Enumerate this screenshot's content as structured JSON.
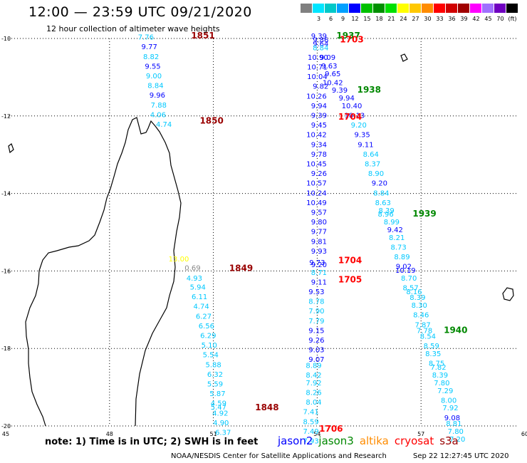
{
  "header": {
    "title": "12:00 — 23:59 UTC 09/21/2020",
    "subtitle": "12 hour collection of altimeter wave heights"
  },
  "scale": {
    "unit_label": "(ft)",
    "entries": [
      {
        "color": "#808080",
        "label": ""
      },
      {
        "color": "#00e5ff",
        "label": "3"
      },
      {
        "color": "#00c8c8",
        "label": "6"
      },
      {
        "color": "#00a0ff",
        "label": "9"
      },
      {
        "color": "#0000ff",
        "label": "12"
      },
      {
        "color": "#00c000",
        "label": "15"
      },
      {
        "color": "#009000",
        "label": "18"
      },
      {
        "color": "#00e000",
        "label": "21"
      },
      {
        "color": "#ffff00",
        "label": "24"
      },
      {
        "color": "#ffc800",
        "label": "27"
      },
      {
        "color": "#ff8c00",
        "label": "30"
      },
      {
        "color": "#ff0000",
        "label": "33"
      },
      {
        "color": "#d00000",
        "label": "36"
      },
      {
        "color": "#a00000",
        "label": "39"
      },
      {
        "color": "#ff00ff",
        "label": "42"
      },
      {
        "color": "#a070ff",
        "label": "45"
      },
      {
        "color": "#7000c0",
        "label": "70"
      },
      {
        "color": "#000000",
        "label": ""
      }
    ]
  },
  "map": {
    "lon_ticks": [
      "45",
      "48",
      "51",
      "54",
      "57",
      "60"
    ],
    "lat_ticks": [
      "-10",
      "-12",
      "-14",
      "-16",
      "-18",
      "-20"
    ],
    "colors": {
      "jason2": "#0000ff",
      "jason3": "#008800",
      "altika": "#ff8c00",
      "cryosat": "#ff0000",
      "s3a": "#990000",
      "cyan": "#00c8ff",
      "yellow": "#ffff00",
      "gray": "#888888",
      "coast": "#000000"
    },
    "labels": [
      {
        "t": "7.76",
        "c": "cyan",
        "lon": 49.05,
        "lat": -10.03
      },
      {
        "t": "9.77",
        "c": "jason2",
        "lon": 49.15,
        "lat": -10.28
      },
      {
        "t": "8.82",
        "c": "cyan",
        "lon": 49.2,
        "lat": -10.53
      },
      {
        "t": "9.55",
        "c": "jason2",
        "lon": 49.25,
        "lat": -10.78
      },
      {
        "t": "9.00",
        "c": "cyan",
        "lon": 49.28,
        "lat": -11.03
      },
      {
        "t": "8.84",
        "c": "cyan",
        "lon": 49.33,
        "lat": -11.28
      },
      {
        "t": "9.96",
        "c": "jason2",
        "lon": 49.38,
        "lat": -11.53
      },
      {
        "t": "7.88",
        "c": "cyan",
        "lon": 49.42,
        "lat": -11.78
      },
      {
        "t": "4.06",
        "c": "cyan",
        "lon": 49.4,
        "lat": -12.03
      },
      {
        "t": "4.74",
        "c": "cyan",
        "lon": 49.57,
        "lat": -12.28
      },
      {
        "t": "13.00",
        "c": "yellow",
        "lon": 50.0,
        "lat": -15.75
      },
      {
        "t": "0.69",
        "c": "gray",
        "lon": 50.4,
        "lat": -15.98
      },
      {
        "t": "4.93",
        "c": "cyan",
        "lon": 50.45,
        "lat": -16.25
      },
      {
        "t": "5.94",
        "c": "cyan",
        "lon": 50.55,
        "lat": -16.48
      },
      {
        "t": "6.11",
        "c": "cyan",
        "lon": 50.6,
        "lat": -16.73
      },
      {
        "t": "4.74",
        "c": "cyan",
        "lon": 50.65,
        "lat": -16.98
      },
      {
        "t": "6.27",
        "c": "cyan",
        "lon": 50.72,
        "lat": -17.23
      },
      {
        "t": "6.56",
        "c": "cyan",
        "lon": 50.8,
        "lat": -17.48
      },
      {
        "t": "6.29",
        "c": "cyan",
        "lon": 50.85,
        "lat": -17.73
      },
      {
        "t": "5.10",
        "c": "cyan",
        "lon": 50.88,
        "lat": -17.98
      },
      {
        "t": "5.54",
        "c": "cyan",
        "lon": 50.92,
        "lat": -18.23
      },
      {
        "t": "5.88",
        "c": "cyan",
        "lon": 51.0,
        "lat": -18.48
      },
      {
        "t": "6.32",
        "c": "cyan",
        "lon": 51.05,
        "lat": -18.73
      },
      {
        "t": "5.59",
        "c": "cyan",
        "lon": 51.05,
        "lat": -18.98
      },
      {
        "t": "5.87",
        "c": "cyan",
        "lon": 51.12,
        "lat": -19.23
      },
      {
        "t": "4.59",
        "c": "cyan",
        "lon": 51.15,
        "lat": -19.48
      },
      {
        "t": "5.47",
        "c": "cyan",
        "lon": 51.15,
        "lat": -19.58
      },
      {
        "t": "4.92",
        "c": "cyan",
        "lon": 51.2,
        "lat": -19.73
      },
      {
        "t": "4.90",
        "c": "cyan",
        "lon": 51.22,
        "lat": -19.98
      },
      {
        "t": "6.37",
        "c": "cyan",
        "lon": 51.28,
        "lat": -20.23
      },
      {
        "t": "9.39",
        "c": "jason2",
        "lon": 54.05,
        "lat": -10.0
      },
      {
        "t": "9.86",
        "c": "jason2",
        "lon": 54.1,
        "lat": -10.1
      },
      {
        "t": "9.64",
        "c": "jason2",
        "lon": 54.1,
        "lat": -10.2
      },
      {
        "t": "8.84",
        "c": "cyan",
        "lon": 54.1,
        "lat": -10.3
      },
      {
        "t": "10.90",
        "c": "jason2",
        "lon": 54.02,
        "lat": -10.55
      },
      {
        "t": "9.09",
        "c": "jason2",
        "lon": 54.3,
        "lat": -10.55
      },
      {
        "t": "10.71",
        "c": "jason2",
        "lon": 54.0,
        "lat": -10.8
      },
      {
        "t": "9.63",
        "c": "jason2",
        "lon": 54.35,
        "lat": -10.77
      },
      {
        "t": "10.04",
        "c": "jason2",
        "lon": 54.0,
        "lat": -11.05
      },
      {
        "t": "9.65",
        "c": "jason2",
        "lon": 54.45,
        "lat": -10.97
      },
      {
        "t": "9.82",
        "c": "jason2",
        "lon": 54.1,
        "lat": -11.3
      },
      {
        "t": "10.42",
        "c": "jason2",
        "lon": 54.45,
        "lat": -11.2
      },
      {
        "t": "9.39",
        "c": "jason2",
        "lon": 54.65,
        "lat": -11.4
      },
      {
        "t": "10.26",
        "c": "jason2",
        "lon": 53.98,
        "lat": -11.55
      },
      {
        "t": "9.94",
        "c": "jason2",
        "lon": 54.85,
        "lat": -11.6
      },
      {
        "t": "9.94",
        "c": "jason2",
        "lon": 54.05,
        "lat": -11.8
      },
      {
        "t": "10.40",
        "c": "jason2",
        "lon": 55.0,
        "lat": -11.8
      },
      {
        "t": "9.39",
        "c": "jason2",
        "lon": 54.05,
        "lat": -12.05
      },
      {
        "t": "10.13",
        "c": "jason2",
        "lon": 55.08,
        "lat": -12.05
      },
      {
        "t": "9.45",
        "c": "jason2",
        "lon": 54.05,
        "lat": -12.3
      },
      {
        "t": "9.20",
        "c": "cyan",
        "lon": 55.2,
        "lat": -12.3
      },
      {
        "t": "10.42",
        "c": "jason2",
        "lon": 53.98,
        "lat": -12.55
      },
      {
        "t": "9.35",
        "c": "jason2",
        "lon": 55.3,
        "lat": -12.55
      },
      {
        "t": "9.34",
        "c": "jason2",
        "lon": 54.05,
        "lat": -12.8
      },
      {
        "t": "9.11",
        "c": "jason2",
        "lon": 55.4,
        "lat": -12.8
      },
      {
        "t": "9.78",
        "c": "jason2",
        "lon": 54.05,
        "lat": -13.05
      },
      {
        "t": "8.64",
        "c": "cyan",
        "lon": 55.55,
        "lat": -13.05
      },
      {
        "t": "10.45",
        "c": "jason2",
        "lon": 53.98,
        "lat": -13.3
      },
      {
        "t": "8.37",
        "c": "cyan",
        "lon": 55.6,
        "lat": -13.3
      },
      {
        "t": "9.26",
        "c": "jason2",
        "lon": 54.05,
        "lat": -13.55
      },
      {
        "t": "8.90",
        "c": "cyan",
        "lon": 55.7,
        "lat": -13.55
      },
      {
        "t": "10.57",
        "c": "jason2",
        "lon": 53.98,
        "lat": -13.8
      },
      {
        "t": "9.20",
        "c": "jason2",
        "lon": 55.8,
        "lat": -13.8
      },
      {
        "t": "10.24",
        "c": "jason2",
        "lon": 53.98,
        "lat": -14.05
      },
      {
        "t": "8.84",
        "c": "cyan",
        "lon": 55.85,
        "lat": -14.05
      },
      {
        "t": "10.49",
        "c": "jason2",
        "lon": 53.98,
        "lat": -14.3
      },
      {
        "t": "8.63",
        "c": "cyan",
        "lon": 55.9,
        "lat": -14.3
      },
      {
        "t": "8.39",
        "c": "cyan",
        "lon": 56.0,
        "lat": -14.5
      },
      {
        "t": "9.57",
        "c": "jason2",
        "lon": 54.05,
        "lat": -14.55
      },
      {
        "t": "8.96",
        "c": "cyan",
        "lon": 55.98,
        "lat": -14.6
      },
      {
        "t": "9.80",
        "c": "jason2",
        "lon": 54.05,
        "lat": -14.8
      },
      {
        "t": "8.99",
        "c": "cyan",
        "lon": 56.15,
        "lat": -14.8
      },
      {
        "t": "9.77",
        "c": "jason2",
        "lon": 54.05,
        "lat": -15.05
      },
      {
        "t": "9.42",
        "c": "jason2",
        "lon": 56.25,
        "lat": -15.0
      },
      {
        "t": "9.81",
        "c": "jason2",
        "lon": 54.05,
        "lat": -15.3
      },
      {
        "t": "8.21",
        "c": "cyan",
        "lon": 56.3,
        "lat": -15.2
      },
      {
        "t": "8.73",
        "c": "cyan",
        "lon": 56.35,
        "lat": -15.45
      },
      {
        "t": "9.93",
        "c": "jason2",
        "lon": 54.05,
        "lat": -15.55
      },
      {
        "t": "8.89",
        "c": "cyan",
        "lon": 56.45,
        "lat": -15.7
      },
      {
        "t": "9.73",
        "c": "jason2",
        "lon": 54.0,
        "lat": -15.85
      },
      {
        "t": "9.02",
        "c": "jason2",
        "lon": 56.5,
        "lat": -15.95
      },
      {
        "t": "9.20",
        "c": "jason2",
        "lon": 54.05,
        "lat": -15.9
      },
      {
        "t": "10.19",
        "c": "jason2",
        "lon": 56.55,
        "lat": -16.05
      },
      {
        "t": "8.71",
        "c": "cyan",
        "lon": 54.05,
        "lat": -16.1
      },
      {
        "t": "8.70",
        "c": "cyan",
        "lon": 56.65,
        "lat": -16.25
      },
      {
        "t": "9.11",
        "c": "jason2",
        "lon": 54.05,
        "lat": -16.35
      },
      {
        "t": "8.57",
        "c": "cyan",
        "lon": 56.7,
        "lat": -16.5
      },
      {
        "t": "9.53",
        "c": "jason2",
        "lon": 53.98,
        "lat": -16.6
      },
      {
        "t": "8.16",
        "c": "cyan",
        "lon": 56.8,
        "lat": -16.6
      },
      {
        "t": "8.78",
        "c": "cyan",
        "lon": 53.98,
        "lat": -16.85
      },
      {
        "t": "8.39",
        "c": "cyan",
        "lon": 56.9,
        "lat": -16.75
      },
      {
        "t": "7.90",
        "c": "cyan",
        "lon": 53.98,
        "lat": -17.1
      },
      {
        "t": "8.30",
        "c": "cyan",
        "lon": 56.95,
        "lat": -16.95
      },
      {
        "t": "8.46",
        "c": "cyan",
        "lon": 57.0,
        "lat": -17.2
      },
      {
        "t": "7.79",
        "c": "cyan",
        "lon": 53.98,
        "lat": -17.35
      },
      {
        "t": "7.87",
        "c": "cyan",
        "lon": 57.05,
        "lat": -17.45
      },
      {
        "t": "9.15",
        "c": "jason2",
        "lon": 53.98,
        "lat": -17.6
      },
      {
        "t": "7.78",
        "c": "cyan",
        "lon": 57.1,
        "lat": -17.6
      },
      {
        "t": "9.26",
        "c": "jason2",
        "lon": 53.98,
        "lat": -17.85
      },
      {
        "t": "8.54",
        "c": "cyan",
        "lon": 57.2,
        "lat": -17.75
      },
      {
        "t": "9.03",
        "c": "jason2",
        "lon": 53.98,
        "lat": -18.1
      },
      {
        "t": "8.59",
        "c": "cyan",
        "lon": 57.3,
        "lat": -18.0
      },
      {
        "t": "9.07",
        "c": "jason2",
        "lon": 53.98,
        "lat": -18.35
      },
      {
        "t": "8.35",
        "c": "cyan",
        "lon": 57.35,
        "lat": -18.2
      },
      {
        "t": "8.75",
        "c": "cyan",
        "lon": 57.45,
        "lat": -18.45
      },
      {
        "t": "8.89",
        "c": "cyan",
        "lon": 53.9,
        "lat": -18.5
      },
      {
        "t": "7.82",
        "c": "cyan",
        "lon": 57.5,
        "lat": -18.55
      },
      {
        "t": "8.42",
        "c": "cyan",
        "lon": 53.9,
        "lat": -18.75
      },
      {
        "t": "8.39",
        "c": "cyan",
        "lon": 57.55,
        "lat": -18.75
      },
      {
        "t": "7.92",
        "c": "cyan",
        "lon": 53.9,
        "lat": -18.95
      },
      {
        "t": "7.80",
        "c": "cyan",
        "lon": 57.6,
        "lat": -18.95
      },
      {
        "t": "8.26",
        "c": "cyan",
        "lon": 53.9,
        "lat": -19.2
      },
      {
        "t": "7.29",
        "c": "cyan",
        "lon": 57.7,
        "lat": -19.15
      },
      {
        "t": "8.04",
        "c": "cyan",
        "lon": 53.9,
        "lat": -19.45
      },
      {
        "t": "8.00",
        "c": "cyan",
        "lon": 57.8,
        "lat": -19.4
      },
      {
        "t": "7.41",
        "c": "cyan",
        "lon": 53.82,
        "lat": -19.7
      },
      {
        "t": "7.92",
        "c": "cyan",
        "lon": 57.85,
        "lat": -19.6
      },
      {
        "t": "9.08",
        "c": "jason2",
        "lon": 57.9,
        "lat": -19.85
      },
      {
        "t": "8.59",
        "c": "cyan",
        "lon": 53.82,
        "lat": -19.95
      },
      {
        "t": "8.81",
        "c": "cyan",
        "lon": 57.95,
        "lat": -20.0
      },
      {
        "t": "7.49",
        "c": "cyan",
        "lon": 53.82,
        "lat": -20.2
      },
      {
        "t": "7.80",
        "c": "cyan",
        "lon": 58.0,
        "lat": -20.2
      },
      {
        "t": "7.93",
        "c": "cyan",
        "lon": 53.82,
        "lat": -20.45
      },
      {
        "t": "7.20",
        "c": "cyan",
        "lon": 58.05,
        "lat": -20.4
      }
    ],
    "times": [
      {
        "t": "1851",
        "c": "s3a",
        "lon": 50.7,
        "lat": -10.0
      },
      {
        "t": "1850",
        "c": "s3a",
        "lon": 50.95,
        "lat": -12.2
      },
      {
        "t": "1849",
        "c": "s3a",
        "lon": 51.8,
        "lat": -16.0
      },
      {
        "t": "1848",
        "c": "s3a",
        "lon": 52.55,
        "lat": -19.6
      },
      {
        "t": "1937",
        "c": "jason3",
        "lon": 54.9,
        "lat": -10.0
      },
      {
        "t": "1703",
        "c": "cryosat",
        "lon": 55.0,
        "lat": -10.1
      },
      {
        "t": "1938",
        "c": "jason3",
        "lon": 55.5,
        "lat": -11.4
      },
      {
        "t": "1704",
        "c": "cryosat",
        "lon": 54.95,
        "lat": -12.1
      },
      {
        "t": "1939",
        "c": "jason3",
        "lon": 57.1,
        "lat": -14.6
      },
      {
        "t": "1704",
        "c": "cryosat",
        "lon": 54.95,
        "lat": -15.8
      },
      {
        "t": "1705",
        "c": "cryosat",
        "lon": 54.95,
        "lat": -16.3
      },
      {
        "t": "1940",
        "c": "jason3",
        "lon": 58.0,
        "lat": -17.6
      },
      {
        "t": "1706",
        "c": "cryosat",
        "lon": 54.4,
        "lat": -20.15
      }
    ]
  },
  "footer": {
    "note": "note:  1) Time is in UTC;  2) SWH is in feet",
    "legend": [
      {
        "name": "jason2",
        "color": "#0000ff"
      },
      {
        "name": "jason3",
        "color": "#008800"
      },
      {
        "name": "altika",
        "color": "#ff8c00"
      },
      {
        "name": "cryosat",
        "color": "#ff0000"
      },
      {
        "name": "s3a",
        "color": "#990000"
      }
    ],
    "credit": "NOAA/NESDIS Center for Satellite Applications and Research",
    "timestamp": "Sep 22 12:27:45 UTC 2020"
  }
}
